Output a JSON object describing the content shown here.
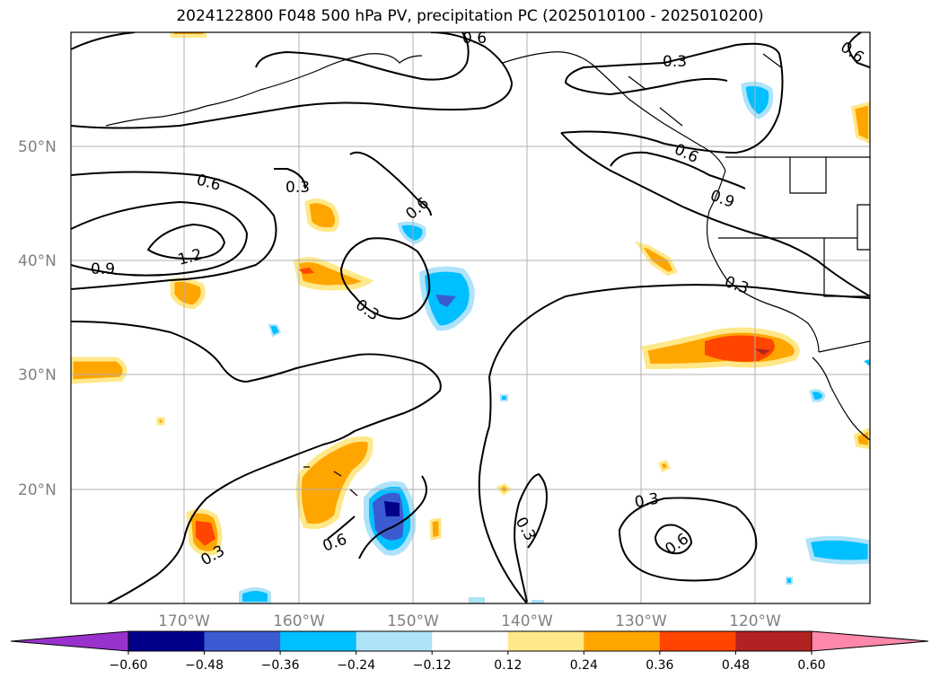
{
  "title": "2024122800 F048 500 hPa PV, precipitation PC (2025010100 - 2025010200)",
  "map": {
    "lat_ticks": [
      "50°N",
      "40°N",
      "30°N",
      "20°N"
    ],
    "lon_ticks": [
      "170°W",
      "160°W",
      "150°W",
      "140°W",
      "130°W",
      "120°W"
    ],
    "contour_labels": [
      "0.6",
      "0.3",
      "0.3",
      "1.2",
      "0.9",
      "0.6",
      "0.3",
      "0.6",
      "0.6",
      "0.9",
      "0.3",
      "0.3",
      "0.6",
      "0.3",
      "0.3",
      "0.6",
      "0.6"
    ],
    "grid": true
  },
  "colorbar": {
    "ticks": [
      "−0.60",
      "−0.48",
      "−0.36",
      "−0.24",
      "−0.12",
      "0.12",
      "0.24",
      "0.36",
      "0.48",
      "0.60"
    ],
    "colors": [
      "#9932cc",
      "#00008b",
      "#3a5bd1",
      "#00bfff",
      "#aee3fa",
      "#ffffff",
      "#ffe88a",
      "#ffa500",
      "#ff4500",
      "#b22222",
      "#ff88aa"
    ]
  }
}
